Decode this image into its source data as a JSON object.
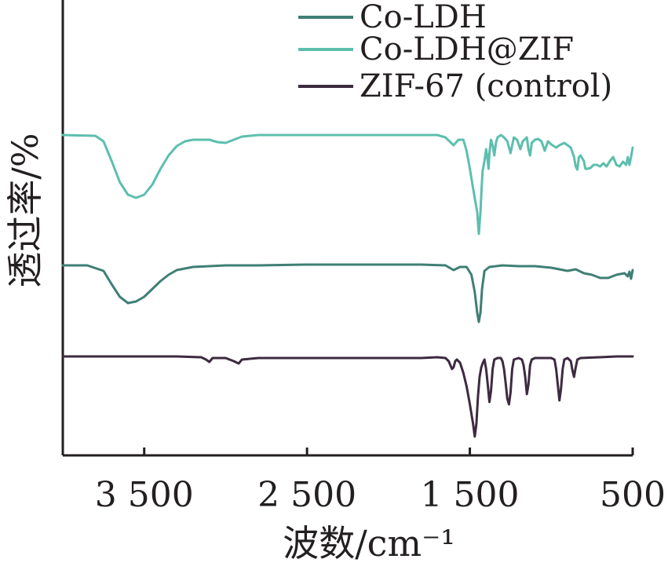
{
  "chart_data": {
    "type": "line",
    "title": "",
    "xlabel": "波数/cm⁻¹",
    "ylabel": "透过率/%",
    "xlim": [
      4000,
      500
    ],
    "x_reversed": true,
    "yticks_shown": false,
    "grid": false,
    "legend_position": "top-right",
    "xticks": [
      {
        "value": 3500,
        "label": "3 500"
      },
      {
        "value": 2500,
        "label": "2 500"
      },
      {
        "value": 1500,
        "label": "1 500"
      },
      {
        "value": 500,
        "label": "500"
      }
    ],
    "series": [
      {
        "name": "Co-LDH",
        "color": "#3f7f75",
        "points": [
          [
            4000,
            338
          ],
          [
            3850,
            338
          ],
          [
            3750,
            345
          ],
          [
            3700,
            362
          ],
          [
            3650,
            378
          ],
          [
            3600,
            386
          ],
          [
            3550,
            384
          ],
          [
            3500,
            378
          ],
          [
            3450,
            368
          ],
          [
            3400,
            358
          ],
          [
            3350,
            350
          ],
          [
            3300,
            344
          ],
          [
            3200,
            340
          ],
          [
            3000,
            338
          ],
          [
            2800,
            338
          ],
          [
            2500,
            337
          ],
          [
            2000,
            337
          ],
          [
            1800,
            337
          ],
          [
            1650,
            338
          ],
          [
            1600,
            344
          ],
          [
            1560,
            340
          ],
          [
            1520,
            340
          ],
          [
            1490,
            350
          ],
          [
            1470,
            372
          ],
          [
            1455,
            398
          ],
          [
            1445,
            410
          ],
          [
            1435,
            398
          ],
          [
            1425,
            368
          ],
          [
            1410,
            345
          ],
          [
            1380,
            340
          ],
          [
            1300,
            338
          ],
          [
            1200,
            339
          ],
          [
            1100,
            339
          ],
          [
            1000,
            341
          ],
          [
            900,
            345
          ],
          [
            850,
            343
          ],
          [
            800,
            348
          ],
          [
            750,
            350
          ],
          [
            700,
            354
          ],
          [
            650,
            354
          ],
          [
            600,
            350
          ],
          [
            550,
            348
          ],
          [
            530,
            352
          ],
          [
            520,
            346
          ],
          [
            510,
            355
          ],
          [
            500,
            344
          ]
        ]
      },
      {
        "name": "Co-LDH@ZIF",
        "color": "#5cbfae",
        "points": [
          [
            4000,
            172
          ],
          [
            3800,
            173
          ],
          [
            3750,
            180
          ],
          [
            3700,
            205
          ],
          [
            3650,
            232
          ],
          [
            3600,
            248
          ],
          [
            3550,
            252
          ],
          [
            3500,
            248
          ],
          [
            3450,
            235
          ],
          [
            3400,
            215
          ],
          [
            3350,
            198
          ],
          [
            3300,
            186
          ],
          [
            3250,
            180
          ],
          [
            3200,
            178
          ],
          [
            3100,
            178
          ],
          [
            3050,
            181
          ],
          [
            3000,
            182
          ],
          [
            2950,
            178
          ],
          [
            2900,
            174
          ],
          [
            2800,
            172
          ],
          [
            2500,
            172
          ],
          [
            2000,
            172
          ],
          [
            1800,
            172
          ],
          [
            1700,
            172
          ],
          [
            1650,
            175
          ],
          [
            1600,
            185
          ],
          [
            1570,
            178
          ],
          [
            1540,
            178
          ],
          [
            1520,
            192
          ],
          [
            1500,
            215
          ],
          [
            1480,
            240
          ],
          [
            1465,
            258
          ],
          [
            1455,
            270
          ],
          [
            1445,
            298
          ],
          [
            1435,
            270
          ],
          [
            1428,
            240
          ],
          [
            1422,
            218
          ],
          [
            1410,
            205
          ],
          [
            1400,
            190
          ],
          [
            1390,
            205
          ],
          [
            1385,
            215
          ],
          [
            1380,
            195
          ],
          [
            1370,
            178
          ],
          [
            1360,
            185
          ],
          [
            1350,
            198
          ],
          [
            1340,
            182
          ],
          [
            1330,
            175
          ],
          [
            1310,
            172
          ],
          [
            1290,
            175
          ],
          [
            1270,
            180
          ],
          [
            1250,
            195
          ],
          [
            1230,
            175
          ],
          [
            1210,
            178
          ],
          [
            1190,
            190
          ],
          [
            1175,
            180
          ],
          [
            1150,
            175
          ],
          [
            1140,
            190
          ],
          [
            1130,
            198
          ],
          [
            1120,
            182
          ],
          [
            1100,
            178
          ],
          [
            1080,
            177
          ],
          [
            1060,
            180
          ],
          [
            1040,
            192
          ],
          [
            1020,
            180
          ],
          [
            1000,
            184
          ],
          [
            970,
            188
          ],
          [
            950,
            185
          ],
          [
            920,
            182
          ],
          [
            900,
            185
          ],
          [
            880,
            188
          ],
          [
            860,
            200
          ],
          [
            850,
            212
          ],
          [
            840,
            216
          ],
          [
            830,
            200
          ],
          [
            820,
            198
          ],
          [
            800,
            205
          ],
          [
            790,
            215
          ],
          [
            780,
            215
          ],
          [
            760,
            214
          ],
          [
            740,
            210
          ],
          [
            720,
            210
          ],
          [
            700,
            212
          ],
          [
            680,
            208
          ],
          [
            660,
            212
          ],
          [
            640,
            205
          ],
          [
            620,
            200
          ],
          [
            600,
            210
          ],
          [
            580,
            212
          ],
          [
            560,
            206
          ],
          [
            540,
            210
          ],
          [
            530,
            200
          ],
          [
            520,
            210
          ],
          [
            510,
            200
          ],
          [
            500,
            188
          ]
        ]
      },
      {
        "name": "ZIF-67 (control)",
        "color": "#3d2a40",
        "points": [
          [
            4000,
            454
          ],
          [
            3500,
            454
          ],
          [
            3300,
            454
          ],
          [
            3150,
            455
          ],
          [
            3120,
            458
          ],
          [
            3100,
            461
          ],
          [
            3080,
            456
          ],
          [
            3000,
            456
          ],
          [
            2950,
            460
          ],
          [
            2920,
            463
          ],
          [
            2900,
            458
          ],
          [
            2800,
            456
          ],
          [
            2500,
            456
          ],
          [
            2000,
            456
          ],
          [
            1800,
            456
          ],
          [
            1700,
            455
          ],
          [
            1650,
            456
          ],
          [
            1630,
            460
          ],
          [
            1610,
            470
          ],
          [
            1600,
            468
          ],
          [
            1590,
            460
          ],
          [
            1580,
            458
          ],
          [
            1560,
            462
          ],
          [
            1540,
            475
          ],
          [
            1520,
            492
          ],
          [
            1500,
            515
          ],
          [
            1480,
            540
          ],
          [
            1470,
            556
          ],
          [
            1460,
            540
          ],
          [
            1450,
            505
          ],
          [
            1440,
            480
          ],
          [
            1430,
            468
          ],
          [
            1420,
            462
          ],
          [
            1410,
            458
          ],
          [
            1400,
            470
          ],
          [
            1390,
            490
          ],
          [
            1380,
            512
          ],
          [
            1370,
            498
          ],
          [
            1360,
            470
          ],
          [
            1350,
            458
          ],
          [
            1330,
            456
          ],
          [
            1310,
            456
          ],
          [
            1300,
            460
          ],
          [
            1290,
            470
          ],
          [
            1280,
            488
          ],
          [
            1270,
            508
          ],
          [
            1260,
            515
          ],
          [
            1250,
            500
          ],
          [
            1240,
            470
          ],
          [
            1230,
            458
          ],
          [
            1200,
            456
          ],
          [
            1180,
            458
          ],
          [
            1170,
            465
          ],
          [
            1160,
            480
          ],
          [
            1150,
            502
          ],
          [
            1140,
            490
          ],
          [
            1130,
            465
          ],
          [
            1120,
            458
          ],
          [
            1100,
            456
          ],
          [
            1000,
            456
          ],
          [
            980,
            458
          ],
          [
            970,
            470
          ],
          [
            960,
            490
          ],
          [
            950,
            510
          ],
          [
            940,
            495
          ],
          [
            930,
            470
          ],
          [
            920,
            458
          ],
          [
            900,
            456
          ],
          [
            880,
            460
          ],
          [
            870,
            472
          ],
          [
            860,
            480
          ],
          [
            850,
            468
          ],
          [
            840,
            458
          ],
          [
            820,
            456
          ],
          [
            700,
            455
          ],
          [
            600,
            454
          ],
          [
            500,
            454
          ]
        ]
      }
    ]
  }
}
